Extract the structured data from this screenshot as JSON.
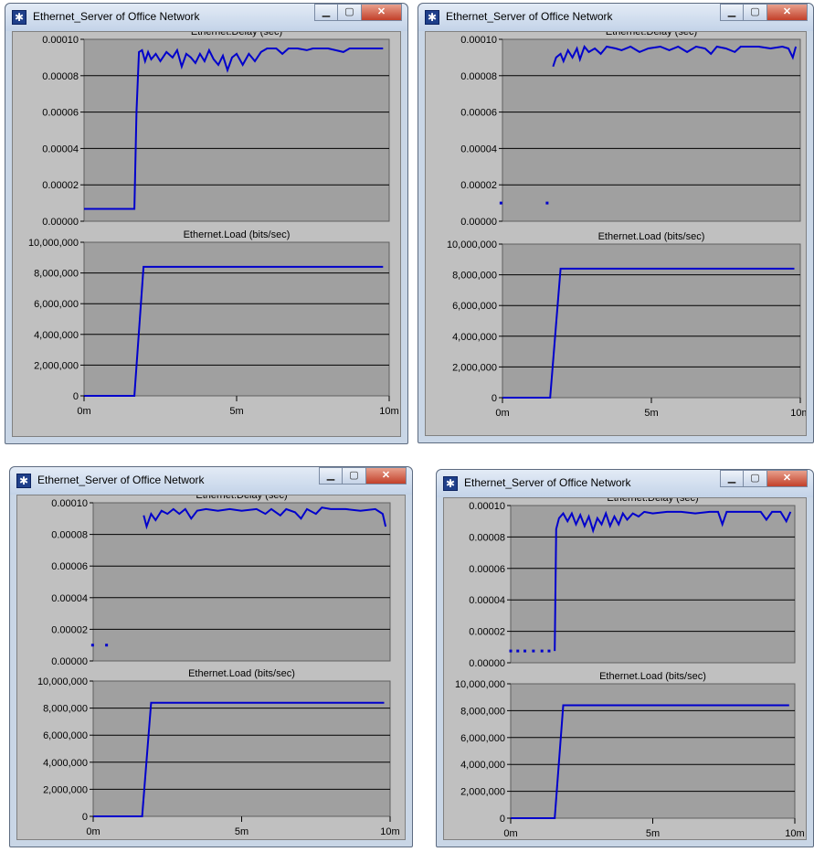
{
  "windows": [
    {
      "title": "Ethernet_Server of Office Network",
      "delay_chart": {
        "title": "Ethernet.Delay (sec)",
        "y_ticks": [
          "0.00010",
          "0.00008",
          "0.00006",
          "0.00004",
          "0.00002",
          "0.00000"
        ],
        "ylim": [
          0,
          0.0001
        ],
        "line": [
          [
            0,
            6.8e-06
          ],
          [
            1.65,
            6.8e-06
          ],
          [
            1.72,
            6e-05
          ],
          [
            1.8,
            9.3e-05
          ],
          [
            1.9,
            9.4e-05
          ],
          [
            2.0,
            8.8e-05
          ],
          [
            2.1,
            9.3e-05
          ],
          [
            2.2,
            8.9e-05
          ],
          [
            2.35,
            9.2e-05
          ],
          [
            2.5,
            8.8e-05
          ],
          [
            2.7,
            9.3e-05
          ],
          [
            2.9,
            9e-05
          ],
          [
            3.05,
            9.4e-05
          ],
          [
            3.2,
            8.5e-05
          ],
          [
            3.35,
            9.2e-05
          ],
          [
            3.5,
            9e-05
          ],
          [
            3.65,
            8.7e-05
          ],
          [
            3.8,
            9.2e-05
          ],
          [
            3.95,
            8.8e-05
          ],
          [
            4.1,
            9.4e-05
          ],
          [
            4.25,
            8.9e-05
          ],
          [
            4.4,
            8.6e-05
          ],
          [
            4.55,
            9.1e-05
          ],
          [
            4.7,
            8.3e-05
          ],
          [
            4.85,
            9e-05
          ],
          [
            5.0,
            9.2e-05
          ],
          [
            5.2,
            8.6e-05
          ],
          [
            5.4,
            9.2e-05
          ],
          [
            5.6,
            8.8e-05
          ],
          [
            5.8,
            9.3e-05
          ],
          [
            6.0,
            9.5e-05
          ],
          [
            6.3,
            9.5e-05
          ],
          [
            6.5,
            9.2e-05
          ],
          [
            6.7,
            9.5e-05
          ],
          [
            7.0,
            9.5e-05
          ],
          [
            7.3,
            9.4e-05
          ],
          [
            7.5,
            9.5e-05
          ],
          [
            8.0,
            9.5e-05
          ],
          [
            8.5,
            9.3e-05
          ],
          [
            8.7,
            9.5e-05
          ],
          [
            9.2,
            9.5e-05
          ],
          [
            9.8,
            9.5e-05
          ]
        ],
        "dots": []
      },
      "load_chart": {
        "title": "Ethernet.Load (bits/sec)",
        "y_ticks": [
          "10,000,000",
          "8,000,000",
          "6,000,000",
          "4,000,000",
          "2,000,000",
          "0"
        ],
        "ylim": [
          0,
          10000000
        ],
        "line": [
          [
            0,
            0
          ],
          [
            1.65,
            0
          ],
          [
            1.95,
            8400000
          ],
          [
            9.8,
            8400000
          ]
        ]
      },
      "x_ticks": [
        "0m",
        "5m",
        "10m"
      ],
      "xlim": [
        0,
        10
      ]
    },
    {
      "title": "Ethernet_Server of Office Network",
      "delay_chart": {
        "title": "Ethernet.Delay (sec)",
        "y_ticks": [
          "0.00010",
          "0.00008",
          "0.00006",
          "0.00004",
          "0.00002",
          "0.00000"
        ],
        "ylim": [
          0,
          0.0001
        ],
        "line": [
          [
            1.7,
            8.5e-05
          ],
          [
            1.8,
            9e-05
          ],
          [
            1.95,
            9.2e-05
          ],
          [
            2.05,
            8.8e-05
          ],
          [
            2.2,
            9.4e-05
          ],
          [
            2.35,
            9e-05
          ],
          [
            2.5,
            9.5e-05
          ],
          [
            2.6,
            8.9e-05
          ],
          [
            2.75,
            9.6e-05
          ],
          [
            2.9,
            9.3e-05
          ],
          [
            3.1,
            9.5e-05
          ],
          [
            3.3,
            9.2e-05
          ],
          [
            3.5,
            9.6e-05
          ],
          [
            3.8,
            9.5e-05
          ],
          [
            4.0,
            9.4e-05
          ],
          [
            4.3,
            9.6e-05
          ],
          [
            4.6,
            9.3e-05
          ],
          [
            4.9,
            9.5e-05
          ],
          [
            5.3,
            9.6e-05
          ],
          [
            5.6,
            9.4e-05
          ],
          [
            5.9,
            9.6e-05
          ],
          [
            6.2,
            9.3e-05
          ],
          [
            6.5,
            9.6e-05
          ],
          [
            6.8,
            9.5e-05
          ],
          [
            7.0,
            9.2e-05
          ],
          [
            7.2,
            9.6e-05
          ],
          [
            7.5,
            9.5e-05
          ],
          [
            7.8,
            9.3e-05
          ],
          [
            8.0,
            9.6e-05
          ],
          [
            8.6,
            9.6e-05
          ],
          [
            9.0,
            9.5e-05
          ],
          [
            9.4,
            9.6e-05
          ],
          [
            9.6,
            9.5e-05
          ],
          [
            9.75,
            9e-05
          ],
          [
            9.85,
            9.6e-05
          ]
        ],
        "dots": [
          [
            -0.05,
            1e-05
          ],
          [
            1.5,
            1e-05
          ]
        ]
      },
      "load_chart": {
        "title": "Ethernet.Load (bits/sec)",
        "y_ticks": [
          "10,000,000",
          "8,000,000",
          "6,000,000",
          "4,000,000",
          "2,000,000",
          "0"
        ],
        "ylim": [
          0,
          10000000
        ],
        "line": [
          [
            0,
            0
          ],
          [
            1.6,
            0
          ],
          [
            1.95,
            8400000
          ],
          [
            9.8,
            8400000
          ]
        ]
      },
      "x_ticks": [
        "0m",
        "5m",
        "10m"
      ],
      "xlim": [
        0,
        10
      ]
    },
    {
      "title": "Ethernet_Server of Office Network",
      "delay_chart": {
        "title": "Ethernet.Delay (sec)",
        "y_ticks": [
          "0.00010",
          "0.00008",
          "0.00006",
          "0.00004",
          "0.00002",
          "0.00000"
        ],
        "ylim": [
          0,
          0.0001
        ],
        "line": [
          [
            1.7,
            9.2e-05
          ],
          [
            1.8,
            8.5e-05
          ],
          [
            1.95,
            9.3e-05
          ],
          [
            2.1,
            8.9e-05
          ],
          [
            2.3,
            9.5e-05
          ],
          [
            2.5,
            9.3e-05
          ],
          [
            2.7,
            9.6e-05
          ],
          [
            2.9,
            9.3e-05
          ],
          [
            3.1,
            9.6e-05
          ],
          [
            3.3,
            9e-05
          ],
          [
            3.5,
            9.5e-05
          ],
          [
            3.8,
            9.6e-05
          ],
          [
            4.2,
            9.5e-05
          ],
          [
            4.6,
            9.6e-05
          ],
          [
            5.0,
            9.5e-05
          ],
          [
            5.5,
            9.6e-05
          ],
          [
            5.8,
            9.3e-05
          ],
          [
            6.0,
            9.6e-05
          ],
          [
            6.3,
            9.2e-05
          ],
          [
            6.5,
            9.6e-05
          ],
          [
            6.8,
            9.4e-05
          ],
          [
            7.0,
            9e-05
          ],
          [
            7.2,
            9.6e-05
          ],
          [
            7.5,
            9.3e-05
          ],
          [
            7.7,
            9.7e-05
          ],
          [
            8.0,
            9.6e-05
          ],
          [
            8.5,
            9.6e-05
          ],
          [
            9.0,
            9.5e-05
          ],
          [
            9.5,
            9.6e-05
          ],
          [
            9.75,
            9.3e-05
          ],
          [
            9.85,
            8.5e-05
          ]
        ],
        "dots": [
          [
            -0.02,
            1e-05
          ],
          [
            0.45,
            1e-05
          ]
        ]
      },
      "load_chart": {
        "title": "Ethernet.Load (bits/sec)",
        "y_ticks": [
          "10,000,000",
          "8,000,000",
          "6,000,000",
          "4,000,000",
          "2,000,000",
          "0"
        ],
        "ylim": [
          0,
          10000000
        ],
        "line": [
          [
            0,
            0
          ],
          [
            1.65,
            0
          ],
          [
            1.95,
            8400000
          ],
          [
            9.8,
            8400000
          ]
        ]
      },
      "x_ticks": [
        "0m",
        "5m",
        "10m"
      ],
      "xlim": [
        0,
        10
      ]
    },
    {
      "title": "Ethernet_Server of Office Network",
      "delay_chart": {
        "title": "Ethernet.Delay (sec)",
        "y_ticks": [
          "0.00010",
          "0.00008",
          "0.00006",
          "0.00004",
          "0.00002",
          "0.00000"
        ],
        "ylim": [
          0,
          0.0001
        ],
        "line": [
          [
            1.55,
            7.5e-06
          ],
          [
            1.6,
            8.5e-05
          ],
          [
            1.7,
            9.2e-05
          ],
          [
            1.85,
            9.5e-05
          ],
          [
            2.0,
            9e-05
          ],
          [
            2.15,
            9.5e-05
          ],
          [
            2.3,
            8.8e-05
          ],
          [
            2.45,
            9.4e-05
          ],
          [
            2.6,
            8.7e-05
          ],
          [
            2.75,
            9.3e-05
          ],
          [
            2.9,
            8.4e-05
          ],
          [
            3.05,
            9.2e-05
          ],
          [
            3.2,
            8.8e-05
          ],
          [
            3.35,
            9.5e-05
          ],
          [
            3.5,
            8.7e-05
          ],
          [
            3.65,
            9.3e-05
          ],
          [
            3.8,
            8.8e-05
          ],
          [
            3.95,
            9.5e-05
          ],
          [
            4.1,
            9.1e-05
          ],
          [
            4.3,
            9.5e-05
          ],
          [
            4.5,
            9.3e-05
          ],
          [
            4.7,
            9.6e-05
          ],
          [
            5.0,
            9.5e-05
          ],
          [
            5.5,
            9.6e-05
          ],
          [
            6.0,
            9.6e-05
          ],
          [
            6.5,
            9.5e-05
          ],
          [
            7.0,
            9.6e-05
          ],
          [
            7.3,
            9.6e-05
          ],
          [
            7.45,
            8.8e-05
          ],
          [
            7.6,
            9.6e-05
          ],
          [
            8.0,
            9.6e-05
          ],
          [
            8.5,
            9.6e-05
          ],
          [
            8.8,
            9.6e-05
          ],
          [
            9.0,
            9.1e-05
          ],
          [
            9.2,
            9.6e-05
          ],
          [
            9.5,
            9.6e-05
          ],
          [
            9.7,
            9e-05
          ],
          [
            9.85,
            9.6e-05
          ]
        ],
        "dots": [
          [
            0.0,
            7.5e-06
          ],
          [
            0.25,
            7.5e-06
          ],
          [
            0.5,
            7.5e-06
          ],
          [
            0.8,
            7.5e-06
          ],
          [
            1.1,
            7.5e-06
          ],
          [
            1.35,
            7.5e-06
          ]
        ]
      },
      "load_chart": {
        "title": "Ethernet.Load (bits/sec)",
        "y_ticks": [
          "10,000,000",
          "8,000,000",
          "6,000,000",
          "4,000,000",
          "2,000,000",
          "0"
        ],
        "ylim": [
          0,
          10000000
        ],
        "line": [
          [
            0,
            0
          ],
          [
            1.55,
            0
          ],
          [
            1.85,
            8400000
          ],
          [
            9.8,
            8400000
          ]
        ]
      },
      "x_ticks": [
        "0m",
        "5m",
        "10m"
      ],
      "xlim": [
        0,
        10
      ]
    }
  ],
  "icons": {
    "app": "graph-icon",
    "minimize": "minimize-icon",
    "maximize": "maximize-icon",
    "close": "close-icon"
  },
  "colors": {
    "line": "#0000cc",
    "plot_bg": "#a0a0a0",
    "window_bg": "#c0c0c0"
  }
}
